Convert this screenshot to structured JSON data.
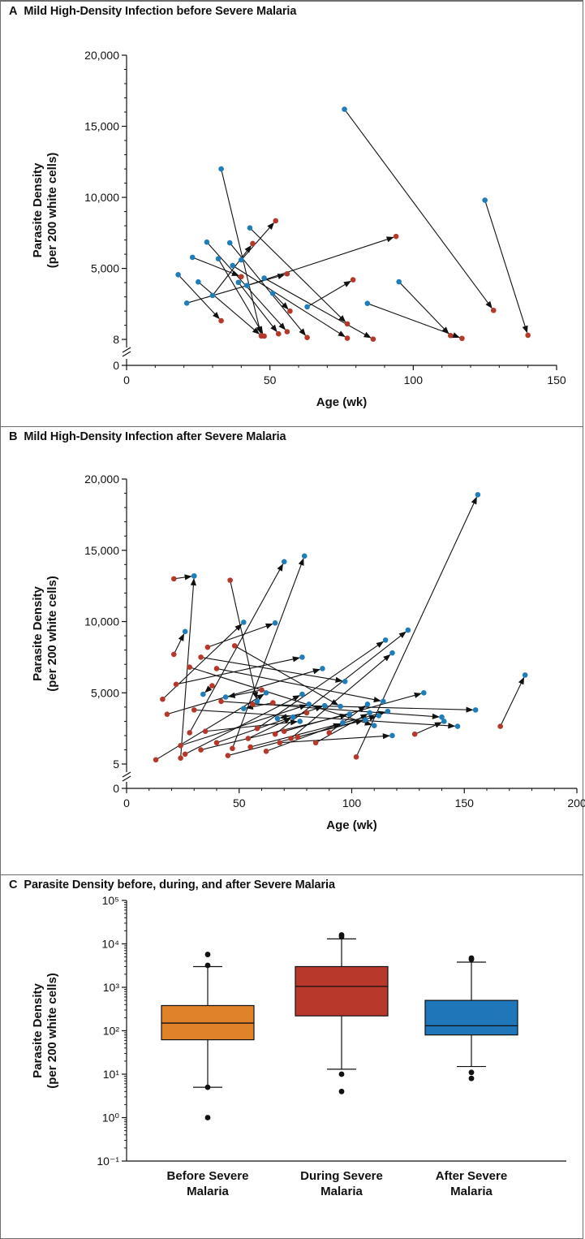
{
  "colors": {
    "before": "#b5392b",
    "after": "#1f7db8",
    "box_before": "#e0822a",
    "box_during": "#b8382b",
    "box_after": "#1f76b8",
    "arrow": "#111111"
  },
  "panels": {
    "a": {
      "letter": "A",
      "title": "Mild High-Density Infection before Severe Malaria"
    },
    "b": {
      "letter": "B",
      "title": "Mild High-Density Infection after Severe Malaria"
    },
    "c": {
      "letter": "C",
      "title": "Parasite Density before, during, and after Severe Malaria"
    }
  },
  "chart_data": [
    {
      "type": "scatter",
      "title": "Mild High-Density Infection before Severe Malaria",
      "xlabel": "Age (wk)",
      "ylabel": [
        "Parasite Density",
        "(per 200 white cells)"
      ],
      "xlim": [
        0,
        150
      ],
      "xticks": [
        "0",
        "50",
        "100",
        "150"
      ],
      "ylim": [
        0,
        20000
      ],
      "yticks": [
        "0",
        "8",
        "5,000",
        "10,000",
        "15,000",
        "20,000"
      ],
      "axis_break": {
        "from": 0,
        "to": 8
      },
      "series": [
        {
          "name": "",
          "values": []
        }
      ],
      "arrows": [
        {
          "from": [
            76,
            16200
          ],
          "to": [
            128,
            2050
          ]
        },
        {
          "from": [
            125,
            9800
          ],
          "to": [
            140,
            300
          ]
        },
        {
          "from": [
            33,
            12000
          ],
          "to": [
            47,
            250
          ]
        },
        {
          "from": [
            43,
            7850
          ],
          "to": [
            77,
            1100
          ]
        },
        {
          "from": [
            23,
            5780
          ],
          "to": [
            40,
            4420
          ]
        },
        {
          "from": [
            28,
            6850
          ],
          "to": [
            56,
            550
          ]
        },
        {
          "from": [
            36,
            6800
          ],
          "to": [
            63,
            140
          ]
        },
        {
          "from": [
            32,
            5680
          ],
          "to": [
            48,
            240
          ]
        },
        {
          "from": [
            37,
            5200
          ],
          "to": [
            77,
            90
          ]
        },
        {
          "from": [
            39,
            4020
          ],
          "to": [
            53,
            400
          ]
        },
        {
          "from": [
            48,
            4320
          ],
          "to": [
            86,
            30
          ]
        },
        {
          "from": [
            51,
            3250
          ],
          "to": [
            57,
            2000
          ]
        },
        {
          "from": [
            18,
            4560
          ],
          "to": [
            33,
            1320
          ]
        },
        {
          "from": [
            25,
            4050
          ],
          "to": [
            47,
            260
          ]
        },
        {
          "from": [
            30,
            3100
          ],
          "to": [
            44,
            6750
          ]
        },
        {
          "from": [
            40,
            5600
          ],
          "to": [
            52,
            8350
          ]
        },
        {
          "from": [
            21,
            2560
          ],
          "to": [
            56,
            4620
          ]
        },
        {
          "from": [
            42,
            3800
          ],
          "to": [
            94,
            7250
          ]
        },
        {
          "from": [
            95,
            4060
          ],
          "to": [
            113,
            280
          ]
        },
        {
          "from": [
            84,
            2540
          ],
          "to": [
            117,
            80
          ]
        },
        {
          "from": [
            63,
            2300
          ],
          "to": [
            79,
            4200
          ]
        }
      ]
    },
    {
      "type": "scatter",
      "title": "Mild High-Density Infection after Severe Malaria",
      "xlabel": "Age (wk)",
      "ylabel": [
        "Parasite Density",
        "(per 200 white cells)"
      ],
      "xlim": [
        0,
        200
      ],
      "xticks": [
        "0",
        "50",
        "100",
        "150",
        "200"
      ],
      "ylim": [
        0,
        20000
      ],
      "yticks": [
        "0",
        "5",
        "5,000",
        "10,000",
        "15,000",
        "20,000"
      ],
      "axis_break": {
        "from": 0,
        "to": 5
      },
      "arrows": [
        {
          "from": [
            102,
            500
          ],
          "to": [
            156,
            18900
          ]
        },
        {
          "from": [
            166,
            2650
          ],
          "to": [
            177,
            6250
          ]
        },
        {
          "from": [
            21,
            13000
          ],
          "to": [
            30,
            13200
          ]
        },
        {
          "from": [
            46,
            12900
          ],
          "to": [
            58,
            4400
          ]
        },
        {
          "from": [
            24,
            420
          ],
          "to": [
            30,
            13200
          ]
        },
        {
          "from": [
            28,
            2200
          ],
          "to": [
            70,
            14200
          ]
        },
        {
          "from": [
            47,
            1100
          ],
          "to": [
            79,
            14600
          ]
        },
        {
          "from": [
            21,
            7700
          ],
          "to": [
            26,
            9300
          ]
        },
        {
          "from": [
            16,
            4550
          ],
          "to": [
            52,
            9950
          ]
        },
        {
          "from": [
            36,
            8200
          ],
          "to": [
            66,
            9900
          ]
        },
        {
          "from": [
            22,
            5600
          ],
          "to": [
            78,
            7500
          ]
        },
        {
          "from": [
            33,
            7500
          ],
          "to": [
            97,
            5800
          ]
        },
        {
          "from": [
            28,
            6800
          ],
          "to": [
            110,
            2700
          ]
        },
        {
          "from": [
            40,
            6700
          ],
          "to": [
            114,
            4400
          ]
        },
        {
          "from": [
            48,
            8300
          ],
          "to": [
            95,
            4050
          ]
        },
        {
          "from": [
            30,
            3800
          ],
          "to": [
            147,
            2650
          ]
        },
        {
          "from": [
            42,
            4400
          ],
          "to": [
            140,
            3300
          ]
        },
        {
          "from": [
            56,
            4200
          ],
          "to": [
            155,
            3800
          ]
        },
        {
          "from": [
            70,
            2300
          ],
          "to": [
            132,
            5000
          ]
        },
        {
          "from": [
            18,
            3500
          ],
          "to": [
            87,
            6700
          ]
        },
        {
          "from": [
            58,
            2500
          ],
          "to": [
            115,
            8700
          ]
        },
        {
          "from": [
            66,
            2100
          ],
          "to": [
            125,
            9400
          ]
        },
        {
          "from": [
            73,
            1800
          ],
          "to": [
            118,
            7800
          ]
        },
        {
          "from": [
            84,
            1500
          ],
          "to": [
            108,
            3600
          ]
        },
        {
          "from": [
            90,
            2200
          ],
          "to": [
            107,
            4200
          ]
        },
        {
          "from": [
            13,
            300
          ],
          "to": [
            62,
            5000
          ]
        },
        {
          "from": [
            26,
            700
          ],
          "to": [
            78,
            4900
          ]
        },
        {
          "from": [
            33,
            1000
          ],
          "to": [
            99,
            3500
          ]
        },
        {
          "from": [
            40,
            1500
          ],
          "to": [
            88,
            4100
          ]
        },
        {
          "from": [
            45,
            600
          ],
          "to": [
            112,
            3400
          ]
        },
        {
          "from": [
            55,
            1200
          ],
          "to": [
            116,
            3700
          ]
        },
        {
          "from": [
            62,
            900
          ],
          "to": [
            96,
            2900
          ]
        },
        {
          "from": [
            68,
            1500
          ],
          "to": [
            118,
            2000
          ]
        },
        {
          "from": [
            76,
            1900
          ],
          "to": [
            106,
            3100
          ]
        },
        {
          "from": [
            24,
            1300
          ],
          "to": [
            81,
            4200
          ]
        },
        {
          "from": [
            35,
            2300
          ],
          "to": [
            77,
            3000
          ]
        },
        {
          "from": [
            54,
            1800
          ],
          "to": [
            74,
            3300
          ]
        },
        {
          "from": [
            128,
            2100
          ],
          "to": [
            141,
            3000
          ]
        },
        {
          "from": [
            80,
            3600
          ],
          "to": [
            67,
            3200
          ]
        },
        {
          "from": [
            65,
            4300
          ],
          "to": [
            52,
            3900
          ]
        },
        {
          "from": [
            38,
            5500
          ],
          "to": [
            34,
            4900
          ]
        },
        {
          "from": [
            60,
            5200
          ],
          "to": [
            44,
            4700
          ]
        }
      ]
    },
    {
      "type": "box",
      "title": "Parasite Density before, during, and after Severe Malaria",
      "ylabel": [
        "Parasite Density",
        "(per 200 white cells)"
      ],
      "yscale": "log",
      "ylim": [
        0.1,
        100000
      ],
      "ytick_labels": [
        "10⁻¹",
        "10⁰",
        "10¹",
        "10²",
        "10³",
        "10⁴",
        "10⁵"
      ],
      "categories": [
        "Before Severe Malaria",
        "During Severe Malaria",
        "After Severe Malaria"
      ],
      "category_lines": [
        [
          "Before Severe",
          "Malaria"
        ],
        [
          "During Severe",
          "Malaria"
        ],
        [
          "After Severe",
          "Malaria"
        ]
      ],
      "boxes": [
        {
          "whisker_low": 5,
          "q1": 62,
          "median": 150,
          "q3": 380,
          "whisker_high": 3000,
          "outliers": [
            5700,
            3200,
            5,
            1
          ]
        },
        {
          "whisker_low": 13,
          "q1": 220,
          "median": 1050,
          "q3": 3000,
          "whisker_high": 13000,
          "outliers": [
            16000,
            14500,
            10,
            4
          ]
        },
        {
          "whisker_low": 15,
          "q1": 80,
          "median": 130,
          "q3": 500,
          "whisker_high": 3800,
          "outliers": [
            4400,
            4700,
            11,
            8
          ]
        }
      ]
    }
  ]
}
